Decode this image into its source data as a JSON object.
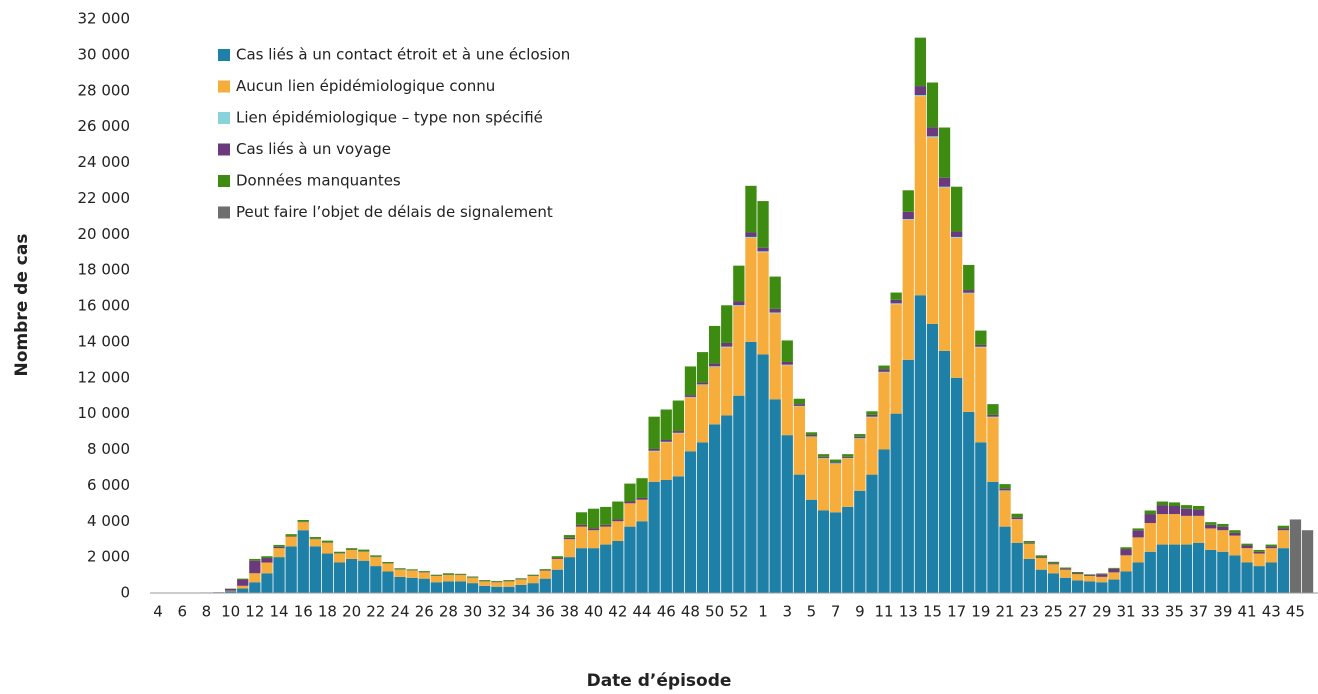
{
  "chart_data": {
    "type": "stacked_bar",
    "xlabel": "Date d’épisode",
    "ylabel": "Nombre de cas",
    "categories": [
      "4",
      null,
      "6",
      null,
      "8",
      null,
      "10",
      null,
      "12",
      null,
      "14",
      null,
      "16",
      null,
      "18",
      null,
      "20",
      null,
      "22",
      null,
      "24",
      null,
      "26",
      null,
      "28",
      null,
      "30",
      null,
      "32",
      null,
      "34",
      null,
      "36",
      null,
      "38",
      null,
      "40",
      null,
      "42",
      null,
      "44",
      null,
      "46",
      null,
      "48",
      null,
      "50",
      null,
      "52",
      null,
      "1",
      null,
      "3",
      null,
      "5",
      null,
      "7",
      null,
      "9",
      null,
      "11",
      null,
      "13",
      null,
      "15",
      null,
      "17",
      null,
      "19",
      null,
      "21",
      null,
      "23",
      null,
      "25",
      null,
      "27",
      null,
      "29",
      null,
      "31",
      null,
      "33",
      null,
      "35",
      null,
      "37",
      null,
      "39",
      null,
      "41",
      null,
      "43",
      null,
      "45",
      null
    ],
    "ylim": [
      0,
      32000
    ],
    "yticks": [
      0,
      {
        "value": 2000,
        "label": "2 000"
      },
      {
        "value": 4000,
        "label": "4 000"
      },
      {
        "value": 6000,
        "label": "6 000"
      },
      {
        "value": 8000,
        "label": "8 000"
      },
      {
        "value": 10000,
        "label": "10 000"
      },
      {
        "value": 12000,
        "label": "12 000"
      },
      {
        "value": 14000,
        "label": "14 000"
      },
      {
        "value": 16000,
        "label": "16 000"
      },
      {
        "value": 18000,
        "label": "18 000"
      },
      {
        "value": 20000,
        "label": "20 000"
      },
      {
        "value": 22000,
        "label": "22 000"
      },
      {
        "value": 24000,
        "label": "24 000"
      },
      {
        "value": 26000,
        "label": "26 000"
      },
      {
        "value": 28000,
        "label": "28 000"
      },
      {
        "value": 30000,
        "label": "30 000"
      },
      {
        "value": 32000,
        "label": "32 000"
      }
    ],
    "grid": false,
    "legend": "upper left",
    "series": [
      {
        "name": "Cas liés à un contact étroit et à une éclosion",
        "color": "#1e7fa7",
        "values": [
          0,
          0,
          0,
          0,
          0,
          0,
          100,
          250,
          600,
          1100,
          2000,
          2600,
          3500,
          2600,
          2200,
          1700,
          1900,
          1800,
          1500,
          1200,
          900,
          850,
          800,
          600,
          650,
          650,
          550,
          400,
          350,
          350,
          450,
          550,
          800,
          1300,
          2000,
          2500,
          2500,
          2700,
          2900,
          3700,
          4000,
          6200,
          6300,
          6500,
          7900,
          8400,
          9400,
          9900,
          11000,
          14000,
          13300,
          10800,
          8800,
          6600,
          5200,
          4600,
          4500,
          4800,
          5700,
          6600,
          8000,
          10000,
          13000,
          16600,
          15000,
          13500,
          12000,
          10100,
          8400,
          6200,
          3700,
          2800,
          1900,
          1300,
          1100,
          850,
          700,
          650,
          600,
          750,
          1200,
          1700,
          2300,
          2700,
          2700,
          2700,
          2800,
          2400,
          2300,
          2100,
          1700,
          1500,
          1700,
          2500,
          0,
          0
        ]
      },
      {
        "name": "Aucun lien épidémiologique connu",
        "color": "#f7ad3c",
        "values": [
          0,
          0,
          0,
          0,
          0,
          0,
          30,
          150,
          500,
          600,
          500,
          550,
          450,
          400,
          600,
          500,
          500,
          500,
          500,
          450,
          400,
          400,
          350,
          350,
          350,
          350,
          300,
          250,
          250,
          300,
          300,
          400,
          450,
          600,
          1000,
          1200,
          1000,
          1000,
          1100,
          1300,
          1200,
          1700,
          2100,
          2400,
          3000,
          3200,
          3200,
          3800,
          5000,
          5800,
          5700,
          4800,
          3900,
          3800,
          3500,
          2900,
          2700,
          2700,
          2900,
          3200,
          4300,
          6100,
          7800,
          11100,
          10400,
          9100,
          7800,
          6600,
          5300,
          3600,
          2000,
          1300,
          850,
          650,
          500,
          450,
          350,
          300,
          300,
          400,
          900,
          1400,
          1600,
          1700,
          1700,
          1600,
          1500,
          1200,
          1200,
          1100,
          800,
          700,
          800,
          1000,
          0,
          0
        ]
      },
      {
        "name": "Lien épidémiologique – type non spécifié",
        "color": "#88d2dc",
        "values": [
          0,
          0,
          0,
          0,
          0,
          0,
          0,
          0,
          0,
          0,
          0,
          0,
          0,
          0,
          0,
          0,
          0,
          0,
          0,
          0,
          0,
          0,
          0,
          0,
          0,
          0,
          0,
          0,
          0,
          0,
          0,
          0,
          0,
          0,
          0,
          0,
          0,
          0,
          0,
          0,
          0,
          30,
          30,
          30,
          30,
          30,
          40,
          40,
          50,
          50,
          50,
          40,
          30,
          30,
          30,
          30,
          30,
          30,
          30,
          30,
          30,
          50,
          50,
          60,
          60,
          50,
          50,
          40,
          30,
          30,
          20,
          20,
          0,
          0,
          0,
          0,
          0,
          0,
          0,
          0,
          0,
          0,
          0,
          0,
          0,
          0,
          0,
          0,
          0,
          0,
          0,
          0,
          0,
          0,
          0,
          0
        ]
      },
      {
        "name": "Cas liés à un voyage",
        "color": "#6b3a7d",
        "values": [
          20,
          20,
          20,
          20,
          30,
          40,
          100,
          350,
          700,
          250,
          80,
          30,
          20,
          20,
          20,
          20,
          20,
          20,
          20,
          20,
          20,
          20,
          20,
          20,
          20,
          20,
          20,
          20,
          20,
          20,
          20,
          20,
          30,
          50,
          80,
          100,
          100,
          100,
          100,
          100,
          100,
          100,
          100,
          100,
          100,
          100,
          150,
          200,
          200,
          250,
          200,
          200,
          150,
          100,
          80,
          60,
          60,
          60,
          80,
          100,
          150,
          200,
          400,
          500,
          500,
          500,
          300,
          150,
          100,
          100,
          100,
          100,
          50,
          50,
          60,
          60,
          60,
          50,
          150,
          200,
          350,
          400,
          500,
          500,
          450,
          400,
          350,
          200,
          200,
          150,
          150,
          100,
          100,
          100,
          0,
          0
        ]
      },
      {
        "name": "Données manquantes",
        "color": "#3e8b12",
        "values": [
          0,
          0,
          0,
          0,
          0,
          0,
          20,
          50,
          100,
          100,
          100,
          100,
          100,
          100,
          100,
          80,
          80,
          100,
          80,
          60,
          60,
          50,
          50,
          50,
          80,
          50,
          50,
          50,
          50,
          50,
          50,
          50,
          50,
          100,
          150,
          700,
          1100,
          1000,
          1000,
          1000,
          1100,
          1800,
          1700,
          1700,
          1600,
          1700,
          2100,
          2100,
          2000,
          2600,
          2600,
          1800,
          1200,
          300,
          150,
          150,
          150,
          150,
          150,
          200,
          200,
          400,
          1200,
          2700,
          2500,
          2800,
          2500,
          1400,
          800,
          600,
          250,
          200,
          100,
          100,
          80,
          60,
          60,
          40,
          40,
          50,
          100,
          100,
          200,
          200,
          200,
          200,
          200,
          150,
          150,
          150,
          100,
          100,
          100,
          150,
          0,
          0
        ]
      },
      {
        "name": "Peut faire l’objet de délais de signalement",
        "color": "#6e6e6e",
        "values": [
          0,
          0,
          0,
          0,
          0,
          0,
          0,
          0,
          0,
          0,
          0,
          0,
          0,
          0,
          0,
          0,
          0,
          0,
          0,
          0,
          0,
          0,
          0,
          0,
          0,
          0,
          0,
          0,
          0,
          0,
          0,
          0,
          0,
          0,
          0,
          0,
          0,
          0,
          0,
          0,
          0,
          0,
          0,
          0,
          0,
          0,
          0,
          0,
          0,
          0,
          0,
          0,
          0,
          0,
          0,
          0,
          0,
          0,
          0,
          0,
          0,
          0,
          0,
          0,
          0,
          0,
          0,
          0,
          0,
          0,
          0,
          0,
          0,
          0,
          0,
          0,
          0,
          0,
          0,
          0,
          0,
          0,
          0,
          0,
          0,
          0,
          0,
          0,
          0,
          0,
          0,
          0,
          0,
          0,
          4100,
          3500
        ]
      }
    ]
  }
}
